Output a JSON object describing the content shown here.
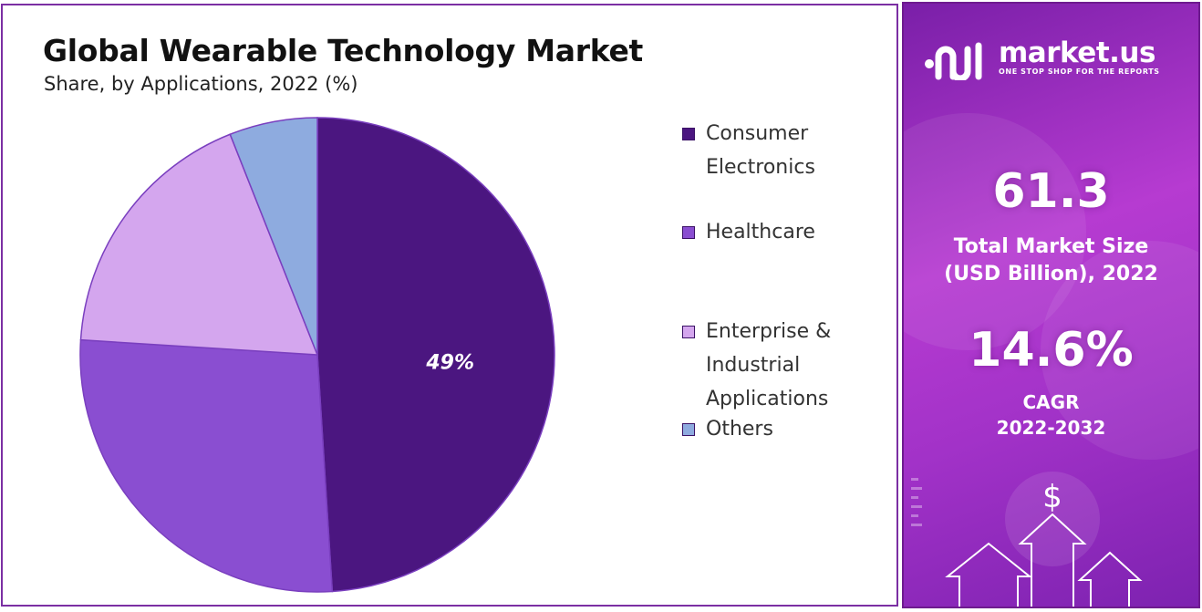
{
  "chart_data": {
    "type": "pie",
    "title": "Global Wearable Technology Market",
    "subtitle": "Share, by Applications, 2022 (%)",
    "categories": [
      "Consumer Electronics",
      "Healthcare",
      "Enterprise & Industrial Applications",
      "Others"
    ],
    "values": [
      49,
      27,
      18,
      6
    ],
    "data_labels": [
      "49%",
      "",
      "",
      ""
    ],
    "colors": [
      "#4b1680",
      "#8a4ed1",
      "#d4a6ee",
      "#8eabdf"
    ],
    "legend_lines": [
      [
        "Consumer",
        "Electronics"
      ],
      [
        "Healthcare"
      ],
      [
        "Enterprise &",
        "Industrial",
        "Applications"
      ],
      [
        "Others"
      ]
    ],
    "legend_position": "right"
  },
  "side_panel": {
    "brand": "market.us",
    "tagline": "ONE STOP SHOP FOR THE REPORTS",
    "market_size_value": "61.3",
    "market_size_label_line1": "Total Market Size",
    "market_size_label_line2": "(USD Billion), 2022",
    "cagr_value": "14.6%",
    "cagr_label_line1": "CAGR",
    "cagr_label_line2": "2022-2032",
    "icons": [
      "dollar-icon",
      "arrow-up-icon"
    ]
  }
}
